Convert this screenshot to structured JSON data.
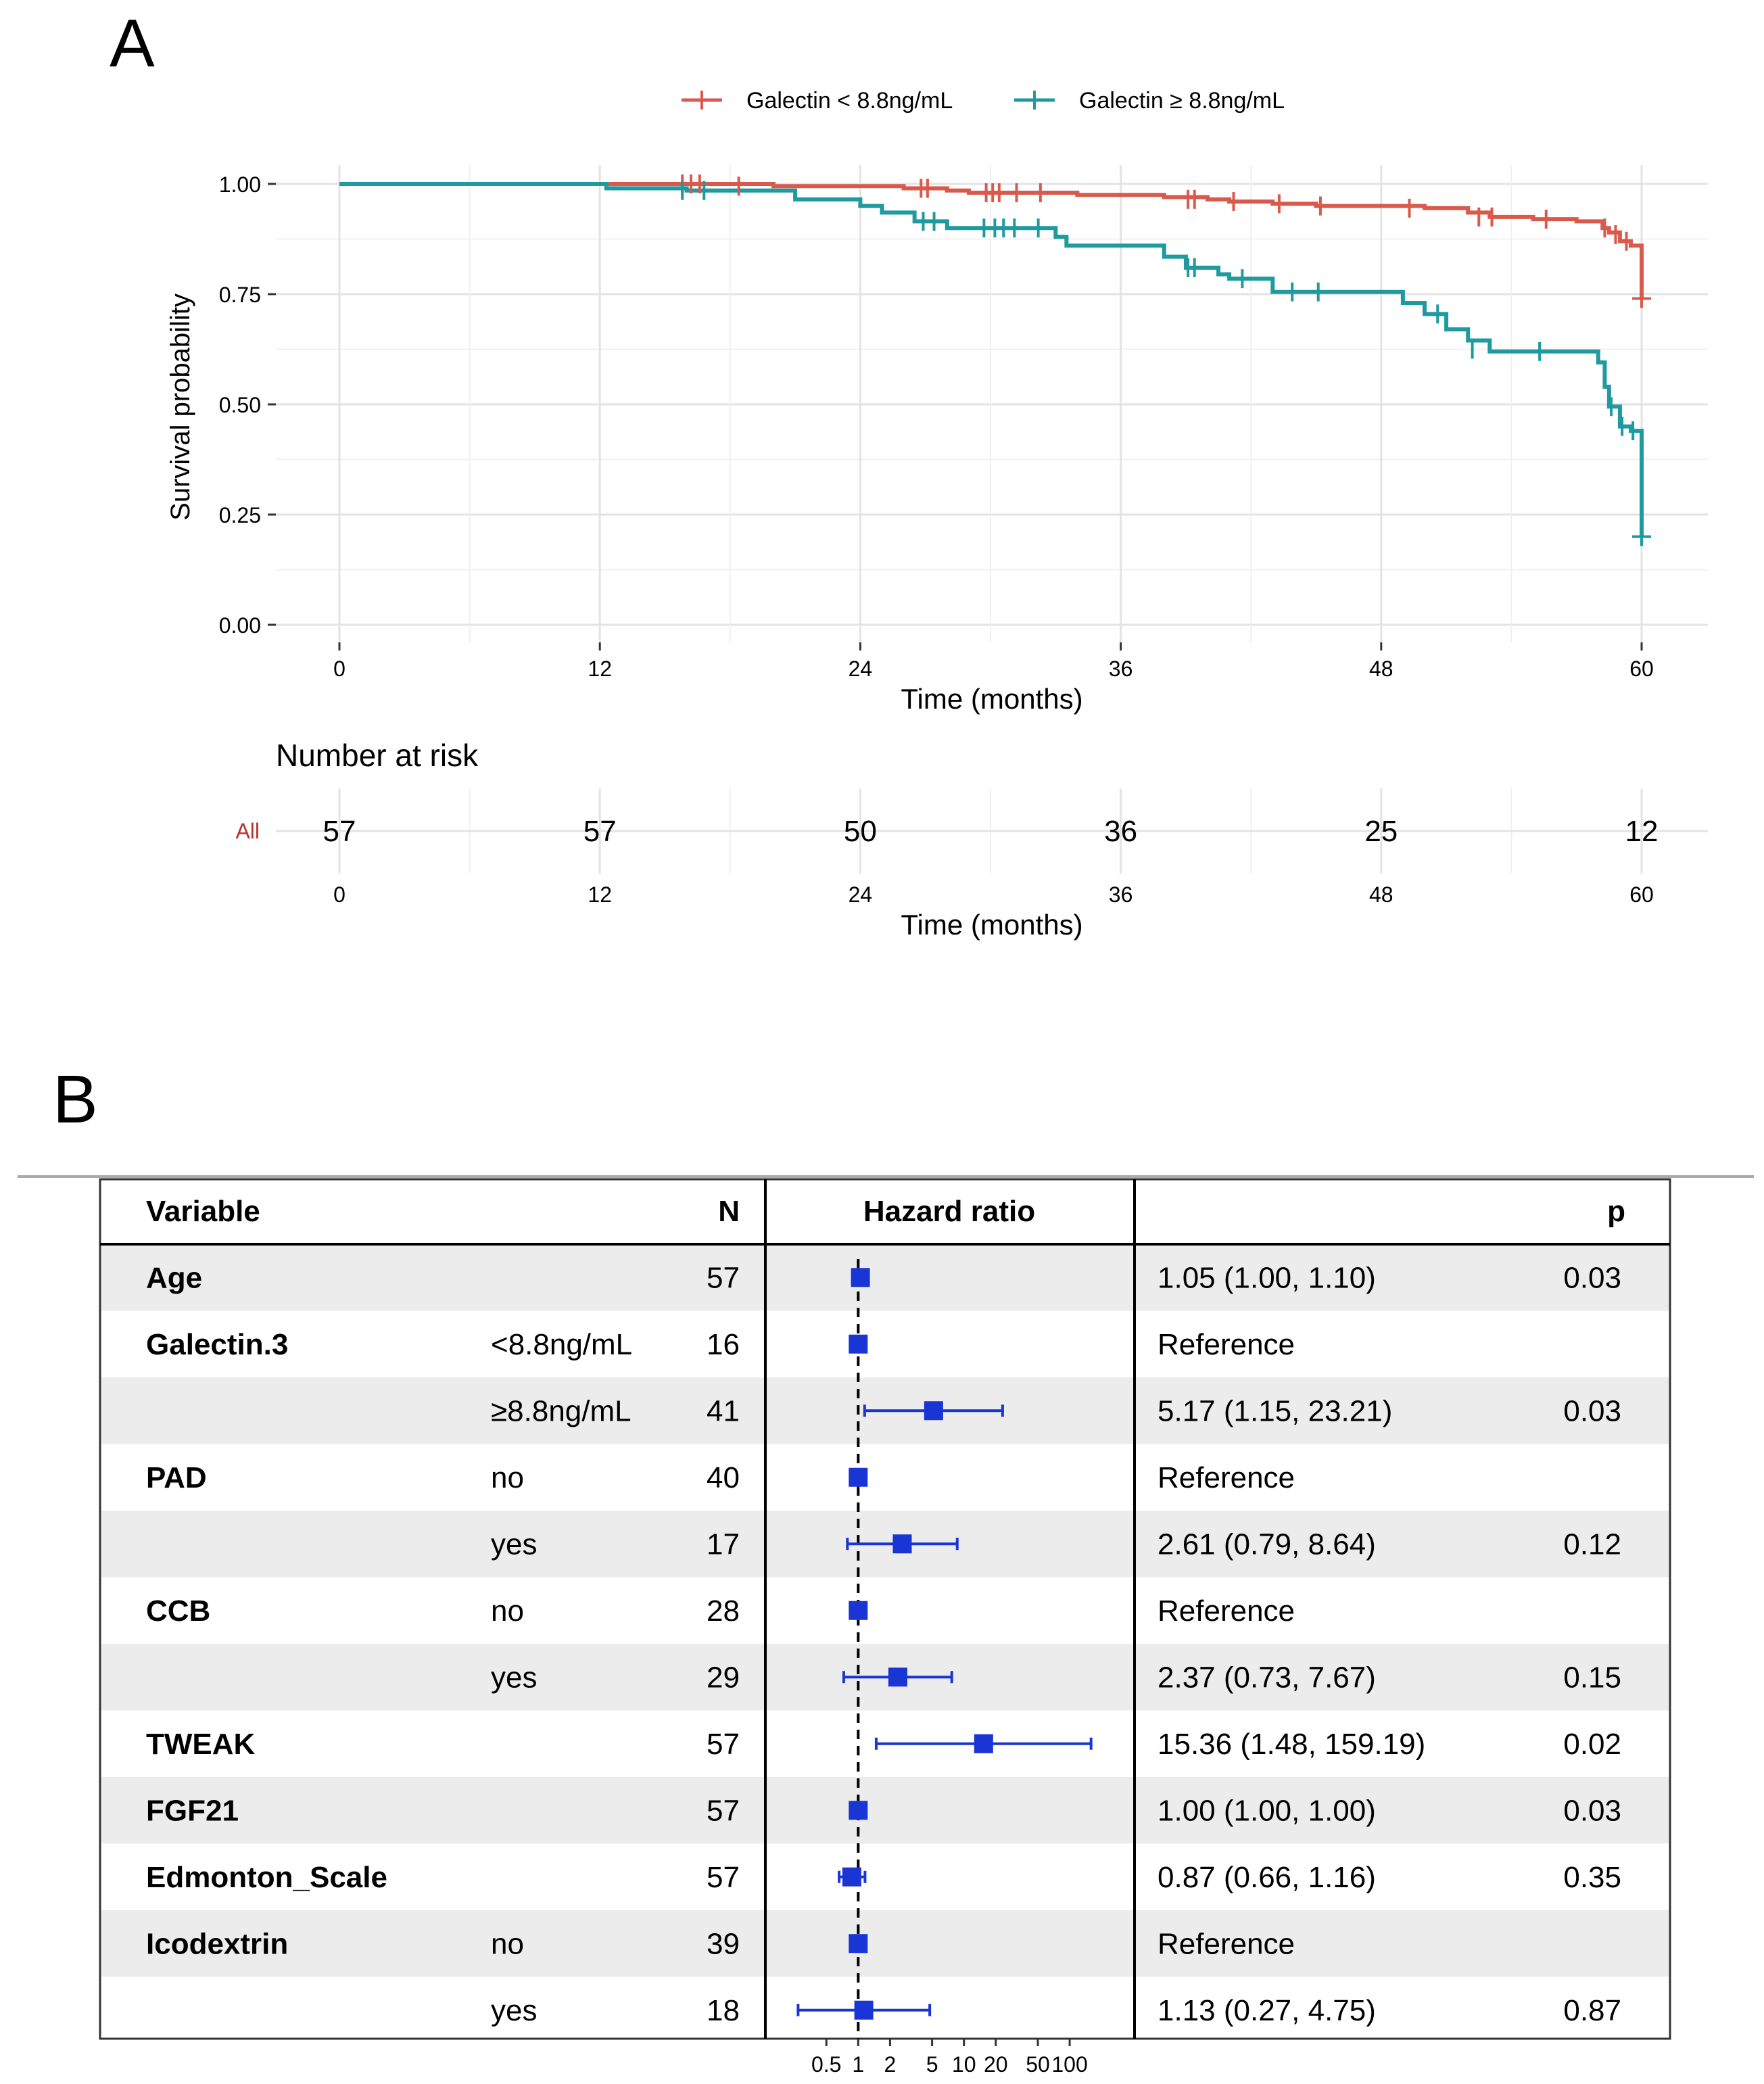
{
  "panel_labels": {
    "a": "A",
    "b": "B"
  },
  "chart_data": [
    {
      "type": "line",
      "subtype": "kaplan-meier",
      "title": "",
      "xlabel": "Time (months)",
      "ylabel": "Survival probability",
      "xlim": [
        0,
        60
      ],
      "ylim": [
        0,
        1
      ],
      "xticks": [
        "0",
        "12",
        "24",
        "36",
        "48",
        "60"
      ],
      "yticks": [
        "0.00",
        "0.25",
        "0.50",
        "0.75",
        "1.00"
      ],
      "grid": true,
      "legend_position": "top",
      "series": [
        {
          "name": "Galectin < 8.8ng/mL",
          "color": "#d95a4c",
          "steps": [
            [
              0,
              1.0
            ],
            [
              16,
              1.0
            ],
            [
              20,
              0.995
            ],
            [
              26,
              0.99
            ],
            [
              28,
              0.985
            ],
            [
              29,
              0.98
            ],
            [
              34,
              0.975
            ],
            [
              38,
              0.97
            ],
            [
              40,
              0.965
            ],
            [
              41,
              0.96
            ],
            [
              43,
              0.955
            ],
            [
              45,
              0.95
            ],
            [
              50,
              0.945
            ],
            [
              52,
              0.935
            ],
            [
              53,
              0.925
            ],
            [
              55,
              0.92
            ],
            [
              57,
              0.915
            ],
            [
              58.2,
              0.9
            ],
            [
              58.5,
              0.89
            ],
            [
              59,
              0.87
            ],
            [
              59.5,
              0.86
            ],
            [
              60,
              0.83
            ],
            [
              60,
              0.74
            ]
          ],
          "censored": [
            [
              15.8,
              1.0
            ],
            [
              16.2,
              1.0
            ],
            [
              16.6,
              1.0
            ],
            [
              18.4,
              0.995
            ],
            [
              26.8,
              0.99
            ],
            [
              27.1,
              0.99
            ],
            [
              29.8,
              0.98
            ],
            [
              30.1,
              0.98
            ],
            [
              30.4,
              0.98
            ],
            [
              31.2,
              0.98
            ],
            [
              32.3,
              0.98
            ],
            [
              39.1,
              0.965
            ],
            [
              39.4,
              0.965
            ],
            [
              41.2,
              0.96
            ],
            [
              43.3,
              0.955
            ],
            [
              45.2,
              0.95
            ],
            [
              49.3,
              0.945
            ],
            [
              52.5,
              0.925
            ],
            [
              53.1,
              0.925
            ],
            [
              55.6,
              0.92
            ],
            [
              58.3,
              0.9
            ],
            [
              58.8,
              0.885
            ],
            [
              59.3,
              0.87
            ],
            [
              60,
              0.74
            ]
          ]
        },
        {
          "name": "Galectin ≥ 8.8ng/mL",
          "color": "#1f9a9e",
          "steps": [
            [
              0,
              1.0
            ],
            [
              12.3,
              0.99
            ],
            [
              16,
              0.985
            ],
            [
              21,
              0.965
            ],
            [
              24,
              0.95
            ],
            [
              25,
              0.935
            ],
            [
              26.5,
              0.915
            ],
            [
              28,
              0.9
            ],
            [
              33,
              0.88
            ],
            [
              33.5,
              0.86
            ],
            [
              38,
              0.835
            ],
            [
              39,
              0.81
            ],
            [
              40.5,
              0.795
            ],
            [
              41,
              0.785
            ],
            [
              43,
              0.755
            ],
            [
              49,
              0.73
            ],
            [
              50,
              0.705
            ],
            [
              51,
              0.67
            ],
            [
              52,
              0.645
            ],
            [
              53,
              0.62
            ],
            [
              58,
              0.595
            ],
            [
              58.3,
              0.54
            ],
            [
              58.5,
              0.495
            ],
            [
              59,
              0.45
            ],
            [
              59.5,
              0.44
            ],
            [
              60,
              0.385
            ],
            [
              60,
              0.2
            ]
          ],
          "censored": [
            [
              15.8,
              0.985
            ],
            [
              16.8,
              0.985
            ],
            [
              26.9,
              0.915
            ],
            [
              27.4,
              0.915
            ],
            [
              29.7,
              0.9
            ],
            [
              30.2,
              0.9
            ],
            [
              30.6,
              0.9
            ],
            [
              31.1,
              0.9
            ],
            [
              32.2,
              0.9
            ],
            [
              39.1,
              0.81
            ],
            [
              39.4,
              0.81
            ],
            [
              41.6,
              0.785
            ],
            [
              43.9,
              0.755
            ],
            [
              45.1,
              0.755
            ],
            [
              50.6,
              0.705
            ],
            [
              52.2,
              0.625
            ],
            [
              55.3,
              0.62
            ],
            [
              58.6,
              0.495
            ],
            [
              59.1,
              0.45
            ],
            [
              59.6,
              0.44
            ],
            [
              60,
              0.2
            ]
          ]
        }
      ],
      "risk_table": {
        "title": "Number at risk",
        "xlabel": "Time (months)",
        "strata": [
          {
            "label": "All",
            "times": [
              "0",
              "12",
              "24",
              "36",
              "48",
              "60"
            ],
            "counts": [
              "57",
              "57",
              "50",
              "36",
              "25",
              "12"
            ]
          }
        ]
      }
    },
    {
      "type": "forest",
      "title": "",
      "headers": {
        "variable": "Variable",
        "n": "N",
        "hr": "Hazard ratio",
        "p": "p"
      },
      "axis_ticks": [
        "0.5",
        "1",
        "2",
        "5",
        "10",
        "20",
        "50",
        "100"
      ],
      "axis_tick_values": [
        0.5,
        1,
        2,
        5,
        10,
        20,
        50,
        100
      ],
      "reference_line": 1,
      "point_color": "#1a35d6",
      "rows": [
        {
          "variable": "Age",
          "level": "",
          "n": "57",
          "hr": 1.05,
          "lo": 1.0,
          "hi": 1.1,
          "ci_text": "1.05 (1.00, 1.10)",
          "p": "0.03"
        },
        {
          "variable": "Galectin.3",
          "level": "<8.8ng/mL",
          "n": "16",
          "hr": 1,
          "lo": null,
          "hi": null,
          "ci_text": "Reference",
          "p": ""
        },
        {
          "variable": "",
          "level": "≥8.8ng/mL",
          "n": "41",
          "hr": 5.17,
          "lo": 1.15,
          "hi": 23.21,
          "ci_text": "5.17 (1.15, 23.21)",
          "p": "0.03"
        },
        {
          "variable": "PAD",
          "level": "no",
          "n": "40",
          "hr": 1,
          "lo": null,
          "hi": null,
          "ci_text": "Reference",
          "p": ""
        },
        {
          "variable": "",
          "level": "yes",
          "n": "17",
          "hr": 2.61,
          "lo": 0.79,
          "hi": 8.64,
          "ci_text": "2.61 (0.79, 8.64)",
          "p": "0.12"
        },
        {
          "variable": "CCB",
          "level": "no",
          "n": "28",
          "hr": 1,
          "lo": null,
          "hi": null,
          "ci_text": "Reference",
          "p": ""
        },
        {
          "variable": "",
          "level": "yes",
          "n": "29",
          "hr": 2.37,
          "lo": 0.73,
          "hi": 7.67,
          "ci_text": "2.37 (0.73, 7.67)",
          "p": "0.15"
        },
        {
          "variable": "TWEAK",
          "level": "",
          "n": "57",
          "hr": 15.36,
          "lo": 1.48,
          "hi": 159.19,
          "ci_text": "15.36 (1.48, 159.19)",
          "p": "0.02"
        },
        {
          "variable": "FGF21",
          "level": "",
          "n": "57",
          "hr": 1.0,
          "lo": 1.0,
          "hi": 1.0,
          "ci_text": "1.00 (1.00, 1.00)",
          "p": "0.03"
        },
        {
          "variable": "Edmonton_Scale",
          "level": "",
          "n": "57",
          "hr": 0.87,
          "lo": 0.66,
          "hi": 1.16,
          "ci_text": "0.87 (0.66, 1.16)",
          "p": "0.35"
        },
        {
          "variable": "Icodextrin",
          "level": "no",
          "n": "39",
          "hr": 1,
          "lo": null,
          "hi": null,
          "ci_text": "Reference",
          "p": ""
        },
        {
          "variable": "",
          "level": "yes",
          "n": "18",
          "hr": 1.13,
          "lo": 0.27,
          "hi": 4.75,
          "ci_text": "1.13 (0.27, 4.75)",
          "p": "0.87"
        }
      ]
    }
  ]
}
